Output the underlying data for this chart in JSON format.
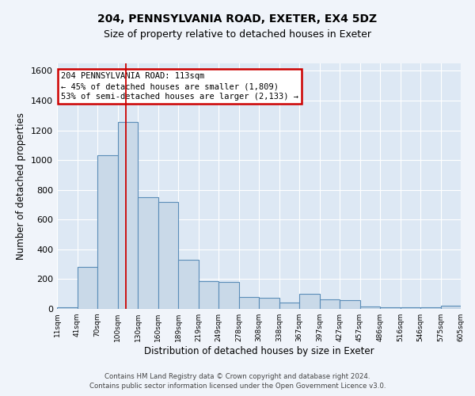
{
  "title1": "204, PENNSYLVANIA ROAD, EXETER, EX4 5DZ",
  "title2": "Size of property relative to detached houses in Exeter",
  "xlabel": "Distribution of detached houses by size in Exeter",
  "ylabel": "Number of detached properties",
  "bar_values": [
    12,
    280,
    1030,
    1255,
    750,
    720,
    330,
    185,
    180,
    80,
    75,
    45,
    100,
    65,
    60,
    15,
    10,
    10,
    10,
    20
  ],
  "tick_labels": [
    "11sqm",
    "41sqm",
    "70sqm",
    "100sqm",
    "130sqm",
    "160sqm",
    "189sqm",
    "219sqm",
    "249sqm",
    "278sqm",
    "308sqm",
    "338sqm",
    "367sqm",
    "397sqm",
    "427sqm",
    "457sqm",
    "486sqm",
    "516sqm",
    "546sqm",
    "575sqm",
    "605sqm"
  ],
  "bar_color": "#c9d9e8",
  "bar_edge_color": "#5b8db8",
  "background_color": "#dde8f4",
  "grid_color": "#ffffff",
  "red_line_x": 3.43,
  "annotation_text": "204 PENNSYLVANIA ROAD: 113sqm\n← 45% of detached houses are smaller (1,809)\n53% of semi-detached houses are larger (2,133) →",
  "annotation_box_color": "#ffffff",
  "annotation_box_edge": "#cc0000",
  "ylim": [
    0,
    1650
  ],
  "yticks": [
    0,
    200,
    400,
    600,
    800,
    1000,
    1200,
    1400,
    1600
  ],
  "footnote": "Contains HM Land Registry data © Crown copyright and database right 2024.\nContains public sector information licensed under the Open Government Licence v3.0."
}
